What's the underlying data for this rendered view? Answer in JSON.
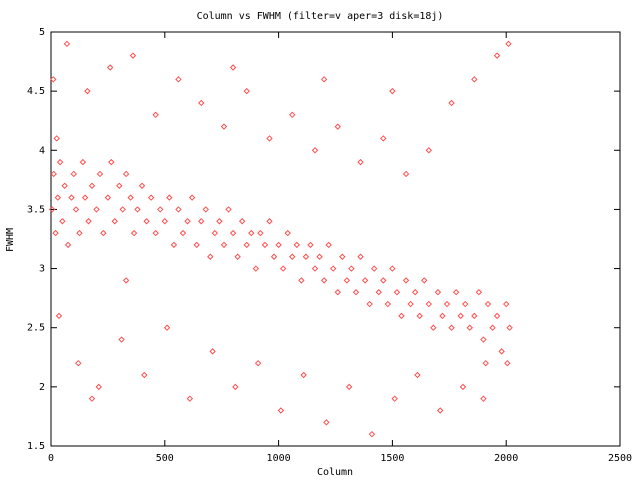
{
  "chart_data": {
    "type": "scatter",
    "title": "Column vs FWHM (filter=v aper=3 disk=18j)",
    "x_label": "Column",
    "y_label": "FWHM",
    "xlim": [
      0,
      2500
    ],
    "ylim": [
      1.5,
      5
    ],
    "xticks": [
      0,
      500,
      1000,
      1500,
      2000,
      2500
    ],
    "yticks": [
      1.5,
      2,
      2.5,
      3,
      3.5,
      4,
      4.5,
      5
    ],
    "color": "#ff5050",
    "x": [
      5,
      12,
      20,
      30,
      40,
      50,
      60,
      75,
      90,
      100,
      110,
      125,
      140,
      150,
      165,
      180,
      200,
      215,
      230,
      250,
      265,
      280,
      300,
      315,
      330,
      350,
      365,
      380,
      400,
      420,
      440,
      460,
      480,
      500,
      520,
      540,
      560,
      580,
      600,
      620,
      640,
      660,
      680,
      700,
      720,
      740,
      760,
      780,
      800,
      820,
      840,
      860,
      880,
      900,
      920,
      940,
      960,
      980,
      1000,
      1020,
      1040,
      1060,
      1080,
      1100,
      1120,
      1140,
      1160,
      1180,
      1200,
      1220,
      1240,
      1260,
      1280,
      1300,
      1320,
      1340,
      1360,
      1380,
      1400,
      1420,
      1440,
      1460,
      1480,
      1500,
      1520,
      1540,
      1560,
      1580,
      1600,
      1620,
      1640,
      1660,
      1680,
      1700,
      1720,
      1740,
      1760,
      1780,
      1800,
      1820,
      1840,
      1860,
      1880,
      1900,
      1920,
      1940,
      1960,
      1980,
      2000,
      2015,
      10,
      35,
      70,
      120,
      160,
      210,
      260,
      310,
      360,
      410,
      460,
      510,
      560,
      610,
      660,
      710,
      760,
      810,
      860,
      910,
      960,
      1010,
      1060,
      1110,
      1160,
      1210,
      1260,
      1310,
      1360,
      1410,
      1460,
      1510,
      1560,
      1610,
      1660,
      1710,
      1760,
      1810,
      1860,
      1910,
      1960,
      2005,
      25,
      180,
      330,
      800,
      1200,
      1500,
      1900,
      2010
    ],
    "values": [
      3.5,
      3.8,
      3.3,
      3.6,
      3.9,
      3.4,
      3.7,
      3.2,
      3.6,
      3.8,
      3.5,
      3.3,
      3.9,
      3.6,
      3.4,
      3.7,
      3.5,
      3.8,
      3.3,
      3.6,
      3.9,
      3.4,
      3.7,
      3.5,
      3.8,
      3.6,
      3.3,
      3.5,
      3.7,
      3.4,
      3.6,
      3.3,
      3.5,
      3.4,
      3.6,
      3.2,
      3.5,
      3.3,
      3.4,
      3.6,
      3.2,
      3.4,
      3.5,
      3.1,
      3.3,
      3.4,
      3.2,
      3.5,
      3.3,
      3.1,
      3.4,
      3.2,
      3.3,
      3.0,
      3.3,
      3.2,
      3.4,
      3.1,
      3.2,
      3.0,
      3.3,
      3.1,
      3.2,
      2.9,
      3.1,
      3.2,
      3.0,
      3.1,
      2.9,
      3.2,
      3.0,
      2.8,
      3.1,
      2.9,
      3.0,
      2.8,
      3.1,
      2.9,
      2.7,
      3.0,
      2.8,
      2.9,
      2.7,
      3.0,
      2.8,
      2.6,
      2.9,
      2.7,
      2.8,
      2.6,
      2.9,
      2.7,
      2.5,
      2.8,
      2.6,
      2.7,
      2.5,
      2.8,
      2.6,
      2.7,
      2.5,
      2.6,
      2.8,
      2.4,
      2.7,
      2.5,
      2.6,
      2.3,
      2.7,
      2.5,
      4.6,
      2.6,
      4.9,
      2.2,
      4.5,
      2.0,
      4.7,
      2.4,
      4.8,
      2.1,
      4.3,
      2.5,
      4.6,
      1.9,
      4.4,
      2.3,
      4.2,
      2.0,
      4.5,
      2.2,
      4.1,
      1.8,
      4.3,
      2.1,
      4.0,
      1.7,
      4.2,
      2.0,
      3.9,
      1.6,
      4.1,
      1.9,
      3.8,
      2.1,
      4.0,
      1.8,
      4.4,
      2.0,
      4.6,
      2.2,
      4.8,
      2.2,
      4.1,
      1.9,
      2.9,
      4.7,
      4.6,
      4.5,
      1.9,
      4.9
    ]
  }
}
